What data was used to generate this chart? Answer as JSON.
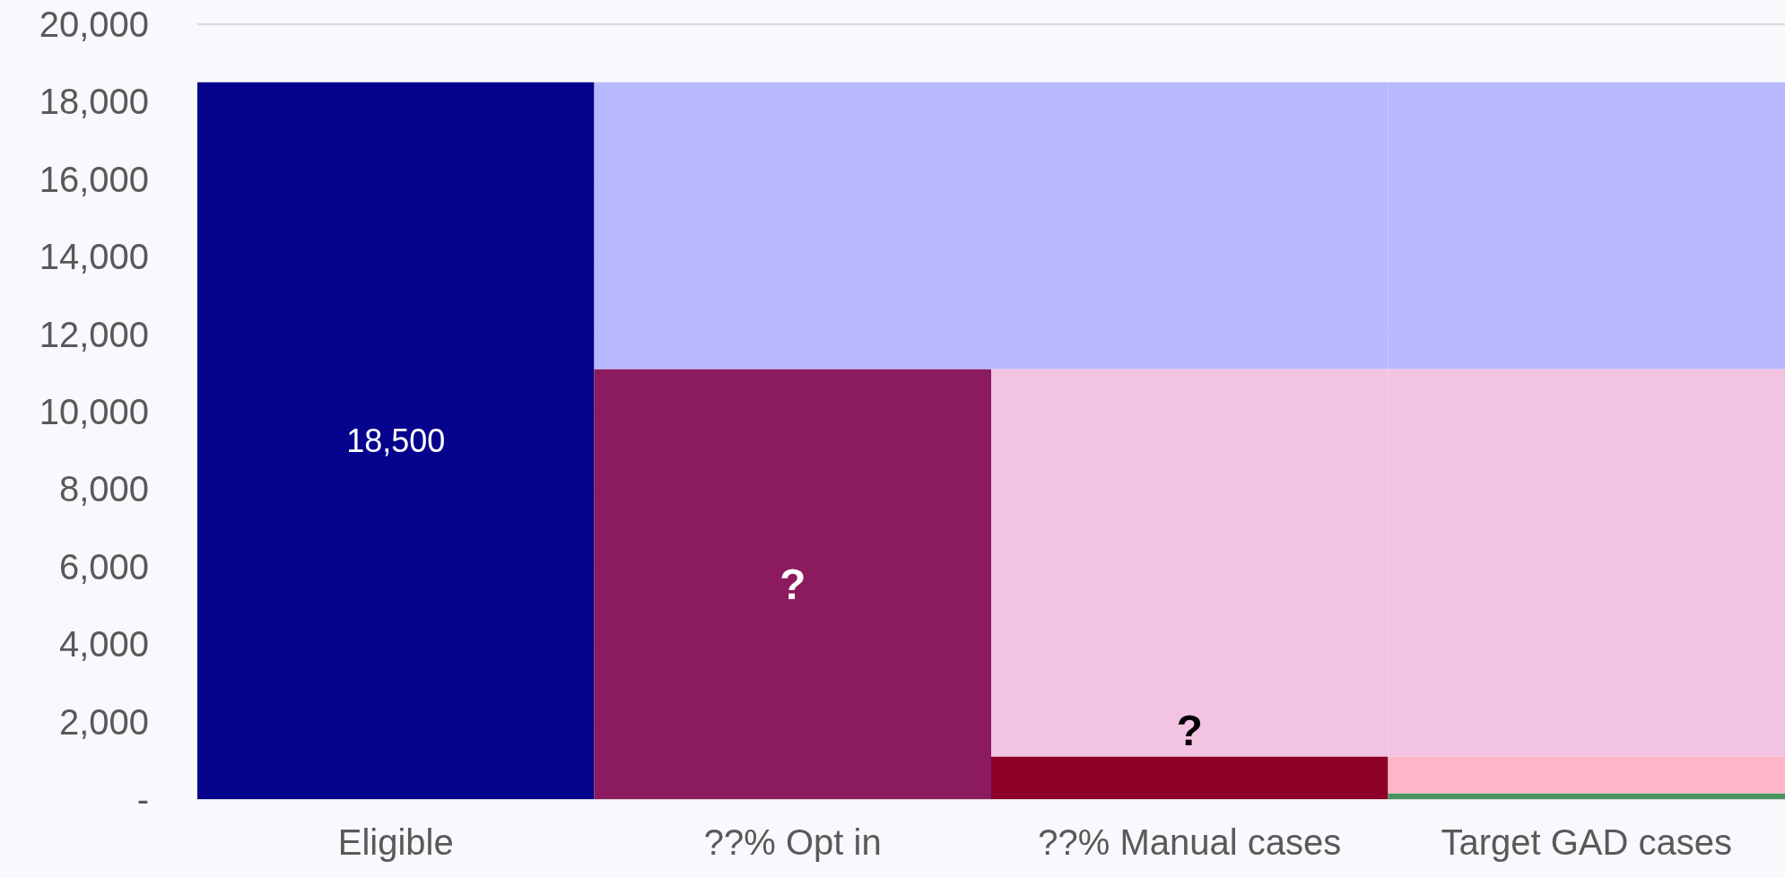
{
  "chart_data": {
    "type": "bar",
    "stacked": true,
    "categories": [
      "Eligible",
      "??% Opt in",
      "??% Manual cases",
      "Target GAD cases"
    ],
    "series": [
      {
        "colors": [
          "#06038d",
          "#8b1a5e",
          "#8e0028",
          "#4a9460"
        ],
        "values": [
          18500,
          11100,
          1100,
          150
        ],
        "value_labels": [
          "18,500",
          "?",
          "?",
          null
        ]
      },
      {
        "color": "#ffb6c8",
        "values": [
          null,
          null,
          null,
          950
        ]
      },
      {
        "color": "#f3c4e1",
        "values": [
          null,
          null,
          10000,
          10000
        ]
      },
      {
        "color": "#b8b8ff",
        "values": [
          null,
          7400,
          7400,
          7400
        ]
      }
    ],
    "ylim": [
      0,
      20000
    ],
    "yticks": [
      {
        "value": 0,
        "label": "-"
      },
      {
        "value": 2000,
        "label": "2,000"
      },
      {
        "value": 4000,
        "label": "4,000"
      },
      {
        "value": 6000,
        "label": "6,000"
      },
      {
        "value": 8000,
        "label": "8,000"
      },
      {
        "value": 10000,
        "label": "10,000"
      },
      {
        "value": 12000,
        "label": "12,000"
      },
      {
        "value": 14000,
        "label": "14,000"
      },
      {
        "value": 16000,
        "label": "16,000"
      },
      {
        "value": 18000,
        "label": "18,000"
      },
      {
        "value": 20000,
        "label": "20,000"
      }
    ],
    "grid": "y"
  }
}
